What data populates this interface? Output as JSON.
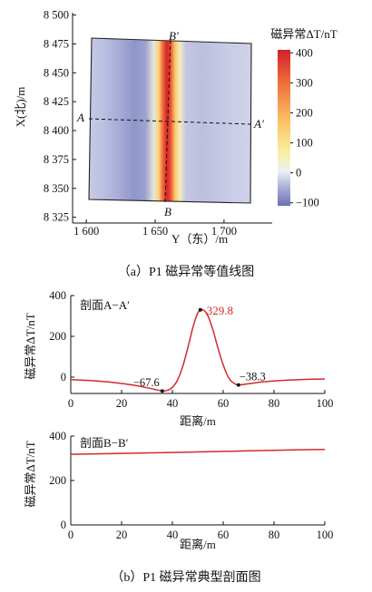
{
  "chart_data": [
    {
      "id": "a",
      "type": "heatmap",
      "caption": "（a）P1 磁异常等值线图",
      "ylabel": "X(北)/m",
      "xlabel": "Y（东）/m",
      "colorbar_title": "磁异常ΔT/nT",
      "x_ticks": [
        "1 600",
        "1 650",
        "1 700"
      ],
      "x_tick_values": [
        1600,
        1650,
        1700
      ],
      "y_ticks": [
        "8 500",
        "8 475",
        "8 450",
        "8 425",
        "8 400",
        "8 375",
        "8 350",
        "8 325"
      ],
      "y_tick_values": [
        8500,
        8475,
        8450,
        8425,
        8400,
        8375,
        8350,
        8325
      ],
      "xlim": [
        1590,
        1735
      ],
      "ylim": [
        8320,
        8502
      ],
      "colorbar_ticks": [
        "400",
        "300",
        "200",
        "100",
        "0",
        "−100"
      ],
      "colorbar_values": [
        400,
        300,
        200,
        100,
        0,
        -100
      ],
      "colorbar_range": [
        -110,
        410
      ],
      "profile_lines": [
        {
          "label_start": "A",
          "label_end": "A′",
          "points": [
            [
              1597,
              8432
            ],
            [
              1723,
              8427
            ]
          ]
        },
        {
          "label_start": "B",
          "label_end": "B′",
          "points": [
            [
              1660,
              8330
            ],
            [
              1665,
              8490
            ]
          ]
        }
      ],
      "anomaly_axis_y": 1663,
      "colors": [
        "#6b6fb5",
        "#aab1d8",
        "#eef0f3",
        "#f7ef9e",
        "#fbbf62",
        "#e8432e",
        "#d2202a"
      ]
    },
    {
      "id": "b1",
      "type": "line",
      "annotation": "剖面A−A′",
      "xlabel": "",
      "ylabel": "磁异常ΔT/nT",
      "xlim": [
        0,
        100
      ],
      "ylim": [
        -80,
        400
      ],
      "x_ticks": [
        "0",
        "20",
        "40",
        "60",
        "80",
        "100"
      ],
      "y_ticks": [
        "400",
        "200",
        "0"
      ],
      "y_tick_values": [
        400,
        200,
        0
      ],
      "series": [
        {
          "color": "#d32a2a",
          "x": [
            0,
            5,
            10,
            15,
            20,
            25,
            30,
            33,
            36,
            38,
            40,
            42,
            44,
            46,
            48,
            50,
            52,
            54,
            56,
            58,
            60,
            62,
            64,
            66,
            70,
            75,
            80,
            85,
            90,
            95,
            100
          ],
          "y": [
            -12,
            -15,
            -19,
            -24,
            -31,
            -40,
            -52,
            -60,
            -67.6,
            -65,
            -50,
            -15,
            50,
            140,
            240,
            315,
            329.8,
            300,
            230,
            140,
            60,
            0,
            -28,
            -38.3,
            -32,
            -24,
            -19,
            -15,
            -12,
            -10,
            -9
          ]
        }
      ],
      "annotations": [
        {
          "text": "−67.6",
          "x": 36,
          "y": -67.6
        },
        {
          "text": "329.8",
          "x": 51,
          "y": 329.8,
          "color": "#d32a2a"
        },
        {
          "text": "−38.3",
          "x": 66,
          "y": -38.3
        }
      ]
    },
    {
      "id": "b2",
      "type": "line",
      "annotation": "剖面B−B′",
      "xlabel": "距离/m",
      "ylabel": "磁异常ΔT/nT",
      "xlim": [
        0,
        100
      ],
      "ylim": [
        0,
        400
      ],
      "x_ticks": [
        "0",
        "20",
        "40",
        "60",
        "80",
        "100"
      ],
      "y_ticks": [
        "400",
        "200",
        "0"
      ],
      "y_tick_values": [
        400,
        200,
        0
      ],
      "series": [
        {
          "color": "#d32a2a",
          "x": [
            0,
            20,
            40,
            60,
            80,
            100
          ],
          "y": [
            318,
            322,
            326,
            331,
            336,
            340
          ]
        }
      ]
    }
  ],
  "captions": {
    "b": "（b）P1 磁异常典型剖面图",
    "b1_xlabel": "距离/m"
  }
}
